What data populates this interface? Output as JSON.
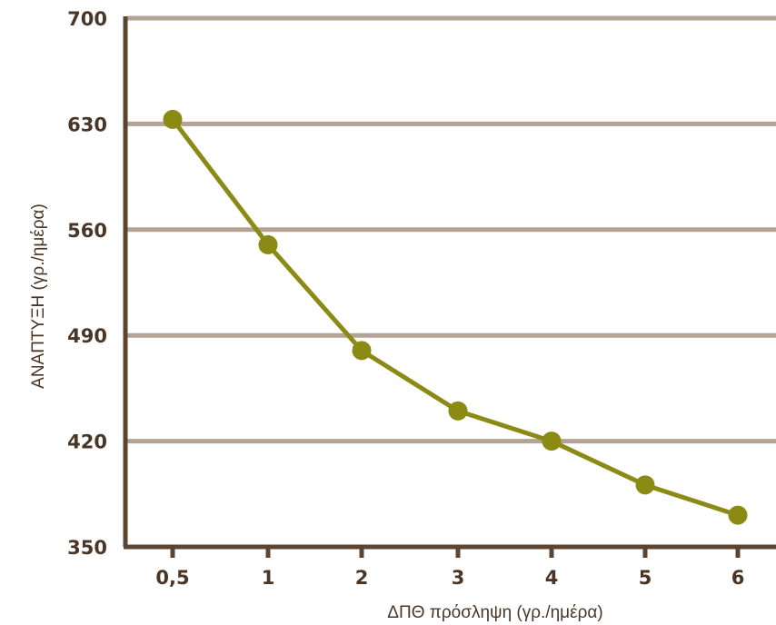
{
  "chart_data": {
    "type": "line",
    "title": "",
    "xlabel": "ΔΠΘ πρόσληψη (γρ./ημέρα)",
    "ylabel": "ΑΝΑΠΤΥΞΗ (γρ./ημέρα)",
    "categories": [
      "0,5",
      "1",
      "2",
      "3",
      "4",
      "5",
      "6"
    ],
    "y_ticks": [
      "350",
      "420",
      "490",
      "560",
      "630",
      "700"
    ],
    "ylim": [
      350,
      700
    ],
    "grid": "horizontal",
    "series": [
      {
        "values": [
          633,
          550,
          480,
          440,
          420,
          391,
          371
        ]
      }
    ],
    "colors": {
      "line": "#8a8a14",
      "grid": "#b3a394",
      "axis": "#5c4433",
      "text": "#4a3626"
    }
  }
}
